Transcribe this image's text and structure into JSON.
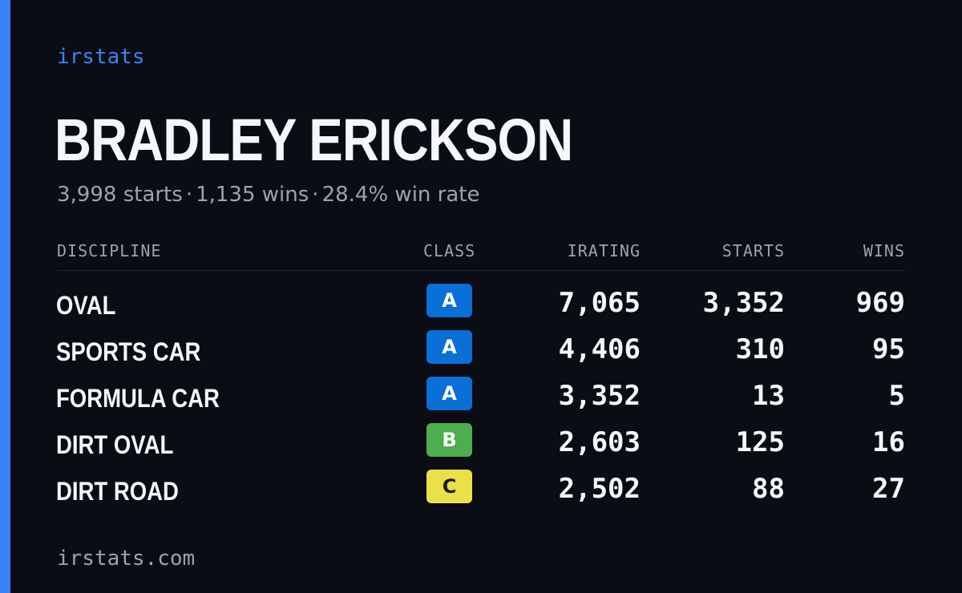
{
  "brand": "irstats",
  "player": {
    "name": "BRADLEY ERICKSON",
    "starts_text": "3,998 starts",
    "wins_text": "1,135 wins",
    "win_rate_text": "28.4% win rate",
    "separator": "·"
  },
  "table": {
    "headers": {
      "discipline": "DISCIPLINE",
      "class": "CLASS",
      "irating": "IRATING",
      "starts": "STARTS",
      "wins": "WINS"
    },
    "rows": [
      {
        "discipline": "OVAL",
        "class": "A",
        "irating": "7,065",
        "starts": "3,352",
        "wins": "969"
      },
      {
        "discipline": "SPORTS CAR",
        "class": "A",
        "irating": "4,406",
        "starts": "310",
        "wins": "95"
      },
      {
        "discipline": "FORMULA CAR",
        "class": "A",
        "irating": "3,352",
        "starts": "13",
        "wins": "5"
      },
      {
        "discipline": "DIRT OVAL",
        "class": "B",
        "irating": "2,603",
        "starts": "125",
        "wins": "16"
      },
      {
        "discipline": "DIRT ROAD",
        "class": "C",
        "irating": "2,502",
        "starts": "88",
        "wins": "27"
      }
    ]
  },
  "class_colors": {
    "A": {
      "bg": "#0a6fd6",
      "fg": "#ffffff"
    },
    "B": {
      "bg": "#4cae4c",
      "fg": "#ffffff"
    },
    "C": {
      "bg": "#ece04a",
      "fg": "#1a1a1a"
    }
  },
  "accent_color": "#3b82f6",
  "footer": {
    "url": "irstats.com"
  }
}
